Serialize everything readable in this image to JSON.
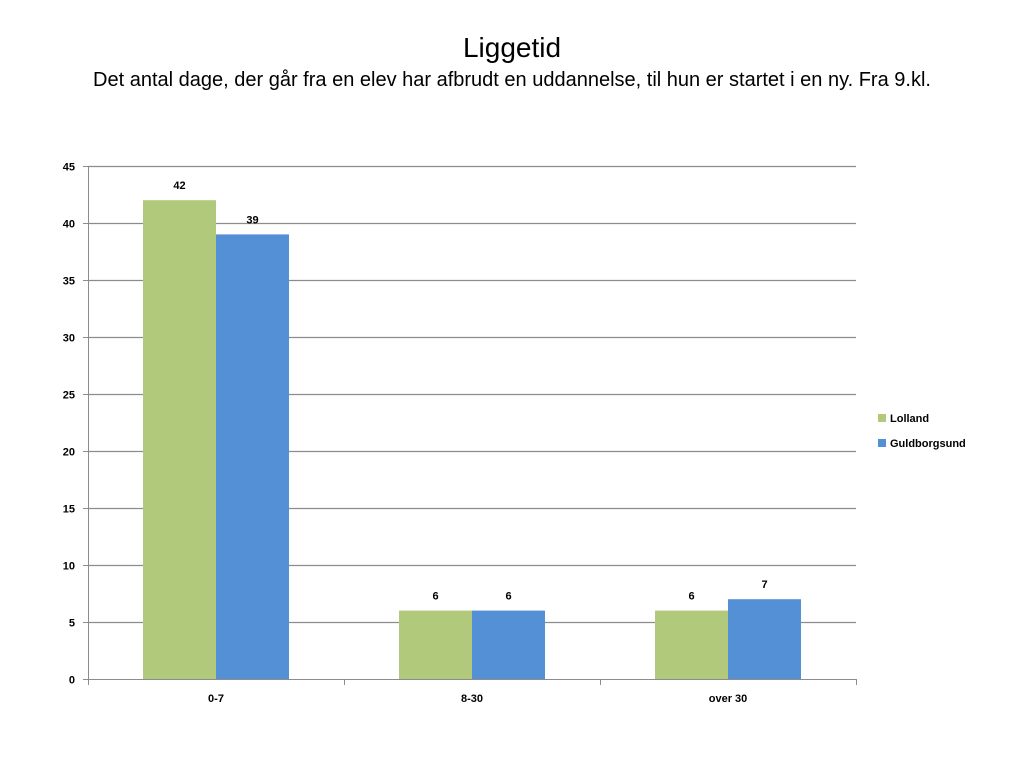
{
  "chart_data": {
    "type": "bar",
    "title": "Liggetid",
    "subtitle": "Det antal dage, der går fra en elev har afbrudt en uddannelse, til hun er startet i en ny. Fra 9.kl.",
    "categories": [
      "0-7",
      "8-30",
      "over 30"
    ],
    "series": [
      {
        "name": "Lolland",
        "values": [
          42,
          6,
          6
        ],
        "color": "#B0C97A"
      },
      {
        "name": "Guldborgsund",
        "values": [
          39,
          6,
          7
        ],
        "color": "#5490D6"
      }
    ],
    "ylim": [
      0,
      45
    ],
    "yticks": [
      0,
      5,
      10,
      15,
      20,
      25,
      30,
      35,
      40,
      45
    ],
    "grid": true,
    "legend_position": "right",
    "gridline_color": "#8C8C8C",
    "axis_color": "#8C8C8C"
  }
}
